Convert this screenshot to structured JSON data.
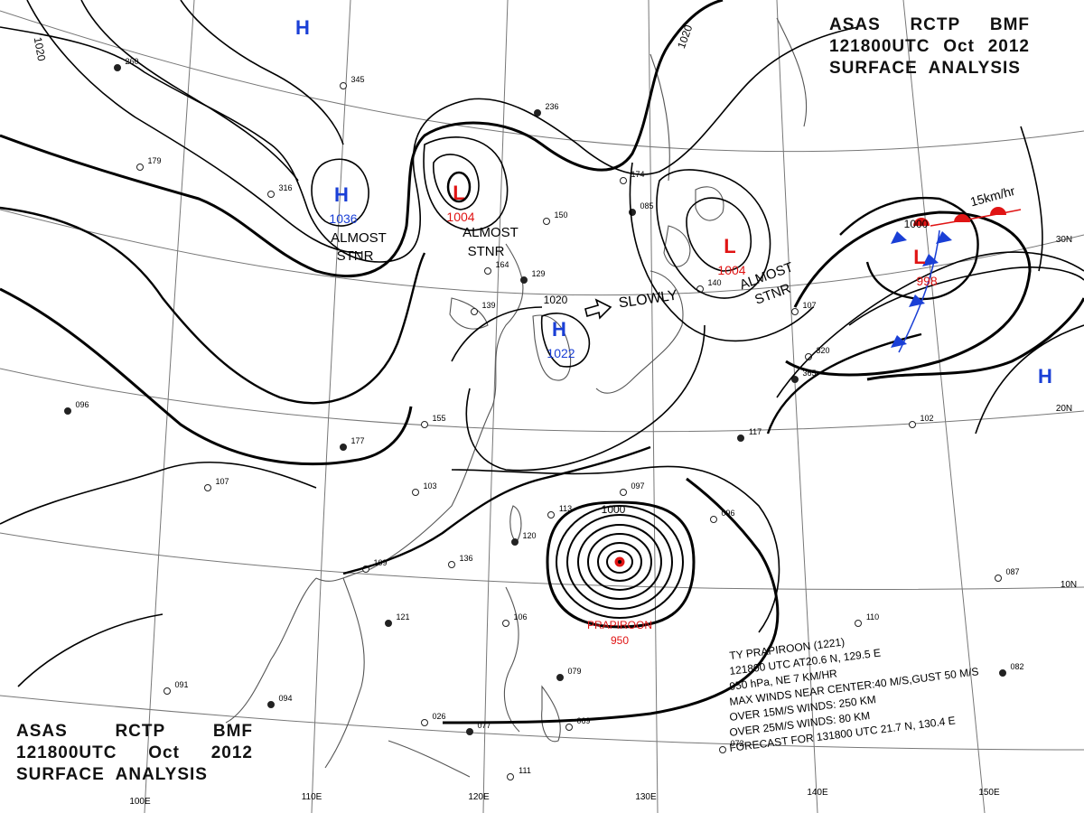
{
  "header": {
    "line1": [
      "ASAS",
      "RCTP",
      "BMF"
    ],
    "line2": [
      "121800UTC",
      "Oct",
      "2012"
    ],
    "line3": "SURFACE  ANALYSIS"
  },
  "isobar_labels": {
    "nw_1020": "1020",
    "n_1020": "1020",
    "korea_1020": "1020",
    "typhoon_1000": "1000",
    "ne_low_1000": "1000"
  },
  "pressure_centers": [
    {
      "kind": "H",
      "value": "",
      "color": "#1a3fd6"
    },
    {
      "kind": "H",
      "value": "1036",
      "color": "#1a3fd6"
    },
    {
      "kind": "L",
      "value": "1004",
      "color": "#e01414"
    },
    {
      "kind": "H",
      "value": "1022",
      "color": "#1a3fd6"
    },
    {
      "kind": "L",
      "value": "1004",
      "color": "#e01414"
    },
    {
      "kind": "L",
      "value": "998",
      "color": "#e01414"
    },
    {
      "kind": "H",
      "value": "",
      "color": "#1a3fd6"
    }
  ],
  "annotations": {
    "almost_stnr_1": [
      "ALMOST",
      "STNR"
    ],
    "almost_stnr_2": [
      "ALMOST",
      "STNR"
    ],
    "almost_stnr_3": [
      "ALMOST",
      "STNR"
    ],
    "slowly": "SLOWLY",
    "front_speed": "15km/hr"
  },
  "typhoon": {
    "name": "PRAPIROON",
    "pressure": "950",
    "bulletin": [
      "TY  PRAPIROON  (1221)",
      "121800 UTC  AT20.6 N, 129.5 E",
      "950 hPa, NE  7 KM/HR",
      "MAX WINDS NEAR CENTER:40 M/S,GUST 50 M/S",
      "OVER 15M/S WINDS: 250 KM",
      "OVER 25M/S WINDS: 80 KM",
      "FORECAST FOR 131800 UTC 21.7 N, 130.4 E"
    ]
  },
  "longitude_labels": [
    "100E",
    "110E",
    "120E",
    "130E",
    "140E",
    "150E"
  ],
  "latitude_labels": [
    "30N",
    "20N",
    "10N"
  ],
  "colors": {
    "high": "#1a3fd6",
    "low": "#e01414",
    "isobar": "#000000",
    "grid": "#666666",
    "coast": "#444444"
  },
  "station_samples": [
    "260",
    "179",
    "316",
    "236",
    "345",
    "155",
    "177",
    "139",
    "164",
    "129",
    "150",
    "174",
    "085",
    "140",
    "107",
    "365",
    "320",
    "102",
    "117",
    "096",
    "087",
    "082",
    "110",
    "109",
    "121",
    "103",
    "136",
    "120",
    "113",
    "097",
    "079",
    "069",
    "026",
    "077",
    "072",
    "091",
    "094",
    "111",
    "106",
    "096",
    "107",
    "052",
    "008"
  ]
}
